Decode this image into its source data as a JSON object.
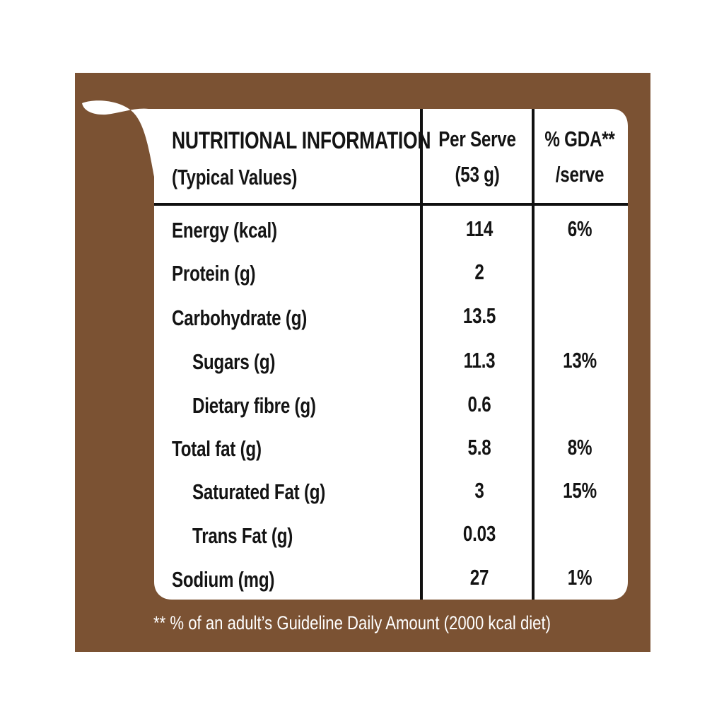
{
  "colors": {
    "background_brown": "#7b5233",
    "card_white": "#ffffff",
    "text_dark": "#141414",
    "footnote_text": "#ffffff"
  },
  "header": {
    "title": "NUTRITIONAL INFORMATION",
    "subtitle": "(Typical Values)",
    "per_serve_line1": "Per Serve",
    "per_serve_line2": "(53 g)",
    "gda_line1": "% GDA**",
    "gda_line2": "/serve"
  },
  "rows": [
    {
      "name": "Energy (kcal)",
      "per_serve": "114",
      "gda": "6%"
    },
    {
      "name": "Protein (g)",
      "per_serve": "2",
      "gda": ""
    },
    {
      "name": "Carbohydrate (g)",
      "per_serve": "13.5",
      "gda": ""
    },
    {
      "name": "Sugars (g)",
      "per_serve": "11.3",
      "gda": "13%"
    },
    {
      "name": "Dietary fibre (g)",
      "per_serve": "0.6",
      "gda": ""
    },
    {
      "name": "Total fat (g)",
      "per_serve": "5.8",
      "gda": "8%"
    },
    {
      "name": "Saturated Fat (g)",
      "per_serve": "3",
      "gda": "15%"
    },
    {
      "name": "Trans Fat (g)",
      "per_serve": "0.03",
      "gda": ""
    },
    {
      "name": "Sodium (mg)",
      "per_serve": "27",
      "gda": "1%"
    }
  ],
  "footnote": "** % of an adult’s Guideline Daily Amount (2000 kcal diet)"
}
